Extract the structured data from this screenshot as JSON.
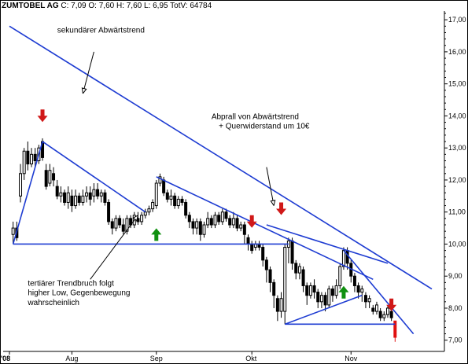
{
  "header": {
    "symbol": "ZUMTOBEL AG",
    "ohlc_text": "C: 7,09 O: 7,60 H: 7,60 L: 6,95 TotV: 64784"
  },
  "colors": {
    "trendline": "#1e3cd2",
    "up_arrow": "#109010",
    "down_arrow": "#d01818",
    "candle": "#000000",
    "last_candle": "#e01010"
  },
  "chart_data": {
    "type": "candlestick",
    "title": "",
    "xlabel": "",
    "ylabel": "",
    "ylim": [
      6.65,
      17.2
    ],
    "y_ticks": [
      "7,00",
      "8,00",
      "9,00",
      "10,00",
      "11,00",
      "12,00",
      "13,00",
      "14,00",
      "15,00",
      "16,00",
      "17,00"
    ],
    "y_tick_values": [
      7,
      8,
      9,
      10,
      11,
      12,
      13,
      14,
      15,
      16,
      17
    ],
    "x_ticks": [
      {
        "label": "'08",
        "day": 0
      },
      {
        "label": "Aug",
        "day": 17
      },
      {
        "label": "Sep",
        "day": 40
      },
      {
        "label": "Okt",
        "day": 66
      },
      {
        "label": "Nov",
        "day": 93
      }
    ],
    "x_range": [
      0,
      115
    ],
    "candles": [
      [
        1,
        10.3,
        10.5,
        10.0,
        10.7
      ],
      [
        2,
        10.5,
        10.2,
        10.1,
        10.7
      ],
      [
        3,
        11.5,
        12.2,
        11.3,
        12.5
      ],
      [
        4,
        12.2,
        12.9,
        12.0,
        13.0
      ],
      [
        5,
        12.9,
        12.5,
        12.3,
        13.2
      ],
      [
        6,
        12.5,
        12.8,
        12.4,
        13.0
      ],
      [
        7,
        12.8,
        12.6,
        12.4,
        13.0
      ],
      [
        8,
        12.6,
        13.0,
        12.5,
        13.1
      ],
      [
        9,
        13.2,
        12.7,
        12.6,
        13.3
      ],
      [
        10,
        12.3,
        11.8,
        11.7,
        12.5
      ],
      [
        11,
        11.9,
        12.3,
        11.8,
        12.5
      ],
      [
        12,
        12.2,
        12.0,
        11.8,
        12.4
      ],
      [
        13,
        11.8,
        11.5,
        11.4,
        12.0
      ],
      [
        14,
        11.5,
        11.6,
        11.3,
        11.8
      ],
      [
        15,
        11.6,
        11.3,
        11.2,
        11.7
      ],
      [
        16,
        11.3,
        11.6,
        11.1,
        11.8
      ],
      [
        17,
        11.5,
        11.2,
        11.0,
        11.7
      ],
      [
        18,
        11.2,
        11.5,
        11.1,
        11.7
      ],
      [
        19,
        11.5,
        11.3,
        11.2,
        11.6
      ],
      [
        20,
        11.3,
        11.5,
        11.2,
        11.7
      ],
      [
        21,
        11.5,
        11.6,
        11.3,
        11.8
      ],
      [
        22,
        11.6,
        11.4,
        11.2,
        11.8
      ],
      [
        23,
        11.5,
        11.7,
        11.3,
        11.9
      ],
      [
        24,
        11.7,
        11.5,
        11.4,
        11.9
      ],
      [
        25,
        11.5,
        11.6,
        11.3,
        11.7
      ],
      [
        26,
        11.6,
        11.3,
        11.2,
        11.7
      ],
      [
        27,
        11.3,
        10.7,
        10.6,
        11.4
      ],
      [
        28,
        10.7,
        10.5,
        10.3,
        10.8
      ],
      [
        29,
        10.5,
        10.8,
        10.4,
        10.9
      ],
      [
        30,
        10.8,
        10.6,
        10.5,
        10.9
      ],
      [
        31,
        10.6,
        10.4,
        10.3,
        10.8
      ],
      [
        32,
        10.4,
        10.8,
        10.3,
        10.9
      ],
      [
        33,
        10.8,
        10.6,
        10.5,
        10.9
      ],
      [
        34,
        10.6,
        10.9,
        10.5,
        11.0
      ],
      [
        35,
        10.8,
        10.7,
        10.6,
        11.0
      ],
      [
        36,
        10.7,
        10.9,
        10.6,
        11.0
      ],
      [
        37,
        10.9,
        11.0,
        10.8,
        11.1
      ],
      [
        38,
        11.0,
        11.1,
        10.9,
        11.2
      ],
      [
        39,
        11.1,
        11.3,
        11.0,
        11.4
      ],
      [
        40,
        11.2,
        11.9,
        11.1,
        12.0
      ],
      [
        41,
        11.9,
        12.1,
        11.8,
        12.2
      ],
      [
        42,
        12.0,
        11.6,
        11.5,
        12.1
      ],
      [
        43,
        11.6,
        11.4,
        11.3,
        11.7
      ],
      [
        44,
        11.4,
        11.5,
        11.2,
        11.7
      ],
      [
        45,
        11.5,
        11.2,
        11.1,
        11.6
      ],
      [
        46,
        11.2,
        11.4,
        11.1,
        11.5
      ],
      [
        47,
        11.4,
        11.3,
        11.2,
        11.5
      ],
      [
        48,
        11.3,
        10.9,
        10.8,
        11.4
      ],
      [
        49,
        10.9,
        10.7,
        10.5,
        11.0
      ],
      [
        50,
        10.7,
        10.5,
        10.3,
        10.8
      ],
      [
        51,
        10.5,
        10.7,
        10.3,
        10.8
      ],
      [
        52,
        10.7,
        10.3,
        10.1,
        10.8
      ],
      [
        53,
        10.3,
        10.6,
        10.2,
        10.7
      ],
      [
        54,
        10.6,
        10.8,
        10.5,
        11.0
      ],
      [
        55,
        10.8,
        10.6,
        10.5,
        10.9
      ],
      [
        56,
        10.6,
        10.9,
        10.5,
        11.0
      ],
      [
        57,
        10.9,
        10.7,
        10.6,
        11.0
      ],
      [
        58,
        10.7,
        11.0,
        10.6,
        11.1
      ],
      [
        59,
        11.0,
        10.8,
        10.7,
        11.1
      ],
      [
        60,
        10.8,
        10.6,
        10.5,
        10.9
      ],
      [
        61,
        10.6,
        10.8,
        10.5,
        11.0
      ],
      [
        62,
        10.8,
        10.5,
        10.4,
        10.9
      ],
      [
        63,
        10.5,
        10.6,
        10.4,
        10.7
      ],
      [
        64,
        10.6,
        10.3,
        10.0,
        10.7
      ],
      [
        65,
        10.2,
        10.0,
        9.8,
        10.3
      ],
      [
        66,
        10.0,
        9.8,
        9.7,
        10.1
      ],
      [
        67,
        9.9,
        10.0,
        9.8,
        10.1
      ],
      [
        68,
        10.0,
        9.9,
        9.8,
        10.1
      ],
      [
        69,
        9.9,
        9.5,
        9.3,
        10.0
      ],
      [
        70,
        9.5,
        9.2,
        8.8,
        9.6
      ],
      [
        71,
        9.2,
        8.8,
        8.5,
        9.3
      ],
      [
        72,
        8.8,
        8.4,
        8.0,
        8.9
      ],
      [
        73,
        8.3,
        7.9,
        7.6,
        8.4
      ],
      [
        74,
        7.9,
        8.3,
        7.7,
        8.5
      ],
      [
        75,
        7.9,
        9.9,
        7.5,
        10.0
      ],
      [
        76,
        9.9,
        10.1,
        9.4,
        10.2
      ],
      [
        77,
        10.1,
        9.4,
        9.2,
        10.2
      ],
      [
        78,
        9.4,
        9.1,
        8.9,
        9.5
      ],
      [
        79,
        9.1,
        9.3,
        8.9,
        9.4
      ],
      [
        80,
        9.2,
        8.7,
        8.5,
        9.3
      ],
      [
        81,
        8.7,
        8.4,
        8.1,
        8.8
      ],
      [
        82,
        8.4,
        8.7,
        8.3,
        8.8
      ],
      [
        83,
        8.7,
        8.5,
        8.3,
        8.9
      ],
      [
        84,
        8.5,
        8.2,
        8.0,
        8.6
      ],
      [
        85,
        8.2,
        8.4,
        8.0,
        8.5
      ],
      [
        86,
        8.4,
        8.1,
        7.9,
        8.5
      ],
      [
        87,
        8.1,
        8.6,
        8.0,
        8.7
      ],
      [
        88,
        8.6,
        8.4,
        8.2,
        8.7
      ],
      [
        89,
        8.4,
        8.7,
        8.3,
        8.9
      ],
      [
        90,
        8.7,
        9.3,
        8.6,
        9.4
      ],
      [
        91,
        9.3,
        9.8,
        9.2,
        9.9
      ],
      [
        92,
        9.8,
        9.4,
        9.2,
        9.9
      ],
      [
        93,
        9.4,
        9.0,
        8.8,
        9.5
      ],
      [
        94,
        9.0,
        8.7,
        8.5,
        9.1
      ],
      [
        95,
        8.7,
        8.5,
        8.3,
        8.8
      ],
      [
        96,
        8.5,
        8.6,
        8.2,
        8.7
      ],
      [
        97,
        8.4,
        8.2,
        8.0,
        8.5
      ],
      [
        98,
        8.2,
        8.3,
        8.0,
        8.4
      ],
      [
        99,
        8.0,
        7.9,
        7.8,
        8.1
      ],
      [
        100,
        7.9,
        8.1,
        7.8,
        8.2
      ],
      [
        101,
        7.9,
        7.7,
        7.6,
        8.0
      ],
      [
        102,
        7.7,
        7.8,
        7.6,
        7.9
      ],
      [
        103,
        7.8,
        8.0,
        7.7,
        8.1
      ],
      [
        104,
        7.9,
        7.7,
        7.6,
        8.0
      ],
      [
        105,
        7.6,
        7.09,
        6.95,
        7.6
      ]
    ],
    "trendlines": [
      {
        "name": "sekundaerer-abwaertstrend",
        "points": [
          [
            0,
            16.8
          ],
          [
            115,
            8.6
          ]
        ]
      },
      {
        "name": "tertiaerer-trend",
        "points": [
          [
            9,
            13.2
          ],
          [
            37,
            11.0
          ]
        ]
      },
      {
        "name": "anstieg-links",
        "points": [
          [
            1,
            10.0
          ],
          [
            9,
            13.2
          ]
        ]
      },
      {
        "name": "horizontal-10",
        "points": [
          [
            1,
            10.0
          ],
          [
            76,
            10.0
          ]
        ]
      },
      {
        "name": "trend-sep-nov",
        "points": [
          [
            40,
            12.1
          ],
          [
            99,
            8.9
          ]
        ]
      },
      {
        "name": "trend-okt-nov",
        "points": [
          [
            70,
            10.6
          ],
          [
            103,
            9.4
          ]
        ]
      },
      {
        "name": "trend-nov-steil",
        "points": [
          [
            91,
            9.8
          ],
          [
            110,
            7.2
          ]
        ]
      },
      {
        "name": "horizontal-7-5",
        "points": [
          [
            75,
            7.5
          ],
          [
            105,
            7.5
          ]
        ]
      },
      {
        "name": "anstieg-okt-nov",
        "points": [
          [
            75,
            7.5
          ],
          [
            96,
            8.4
          ]
        ]
      }
    ],
    "arrows": [
      {
        "dir": "down",
        "day": 9,
        "value": 14.2
      },
      {
        "dir": "up",
        "day": 40,
        "value": 10.1
      },
      {
        "dir": "down",
        "day": 66,
        "value": 10.9
      },
      {
        "dir": "down",
        "day": 74,
        "value": 11.3
      },
      {
        "dir": "up",
        "day": 91,
        "value": 8.3
      },
      {
        "dir": "down",
        "day": 104,
        "value": 8.3
      }
    ],
    "annotations": [
      {
        "text": "sekundärer Abwärtstrend",
        "day": 13,
        "value": 16.6,
        "pointer": [
          [
            23,
            16.0
          ],
          [
            20,
            14.7
          ]
        ]
      },
      {
        "text": "Abprall von Abwärtstrend",
        "day": 55,
        "value": 13.9,
        "pointer": [
          [
            70,
            12.4
          ],
          [
            72,
            11.2
          ]
        ]
      },
      {
        "text": "+ Querwiderstand um 10€",
        "day": 57,
        "value": 13.6,
        "pointer": null
      },
      {
        "text": "tertiärer Trendbruch folgt",
        "day": 5,
        "value": 8.7,
        "pointer": [
          [
            22,
            8.9
          ],
          [
            35,
            10.9
          ]
        ]
      },
      {
        "text": "higher Low, Gegenbewegung",
        "day": 5,
        "value": 8.4,
        "pointer": null
      },
      {
        "text": "wahrscheinlich",
        "day": 5,
        "value": 8.1,
        "pointer": null
      }
    ]
  }
}
